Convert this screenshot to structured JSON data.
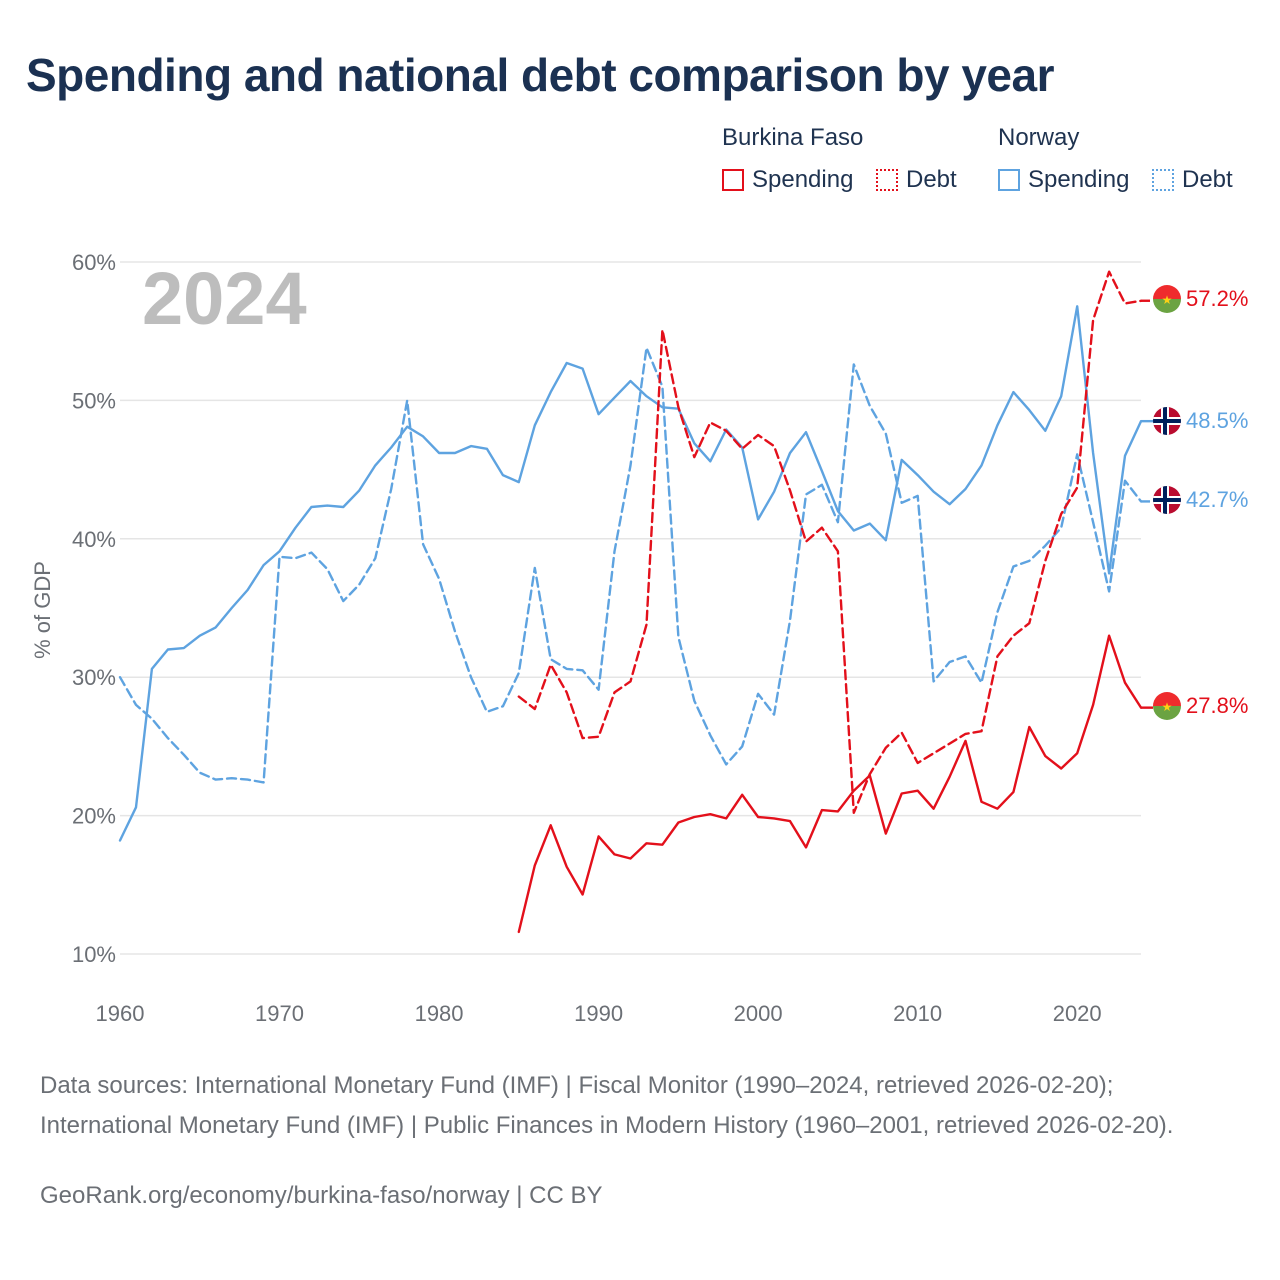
{
  "title": "Spending and national debt comparison by year",
  "legend": {
    "groups": [
      {
        "country": "Burkina Faso",
        "color": "#e3101b",
        "items": [
          {
            "label": "Spending",
            "style": "solid"
          },
          {
            "label": "Debt",
            "style": "dotted"
          }
        ]
      },
      {
        "country": "Norway",
        "color": "#5ea3e0",
        "items": [
          {
            "label": "Spending",
            "style": "solid"
          },
          {
            "label": "Debt",
            "style": "dotted"
          }
        ]
      }
    ]
  },
  "year_label": "2024",
  "end_labels": {
    "bf_debt": "57.2%",
    "no_spending": "48.5%",
    "no_debt": "42.7%",
    "bf_spending": "27.8%"
  },
  "sources_text": "Data sources: International Monetary Fund (IMF) | Fiscal Monitor (1990–2024, retrieved 2026-02-20); International Monetary Fund (IMF) | Public Finances in Modern History (1960–2001, retrieved 2026-02-20).",
  "credit_text": "GeoRank.org/economy/burkina-faso/norway | CC BY",
  "colors": {
    "burkina": "#e3101b",
    "norway": "#5ea3e0",
    "grid": "#e5e5e5",
    "year": "#bdbdbd"
  },
  "chart_data": {
    "type": "line",
    "title": "Spending and national debt comparison by year",
    "xlabel": "",
    "ylabel": "% of GDP",
    "xlim": [
      1960,
      2024
    ],
    "ylim": [
      10,
      60
    ],
    "x_ticks": [
      1960,
      1970,
      1980,
      1990,
      2000,
      2010,
      2020
    ],
    "x_tick_labels": [
      "1960",
      "1970",
      "1980",
      "1990",
      "2000",
      "2010",
      "2020"
    ],
    "y_ticks": [
      10,
      20,
      30,
      40,
      50,
      60
    ],
    "y_tick_labels": [
      "10%",
      "20%",
      "30%",
      "40%",
      "50%",
      "60%"
    ],
    "grid": true,
    "series": [
      {
        "name": "Norway Spending",
        "country": "Norway",
        "metric": "Spending",
        "style": "solid",
        "color": "#5ea3e0",
        "x": [
          1960,
          1961,
          1962,
          1963,
          1964,
          1965,
          1966,
          1967,
          1968,
          1969,
          1970,
          1971,
          1972,
          1973,
          1974,
          1975,
          1976,
          1977,
          1978,
          1979,
          1980,
          1981,
          1982,
          1983,
          1984,
          1985,
          1986,
          1987,
          1988,
          1989,
          1990,
          1991,
          1992,
          1993,
          1994,
          1995,
          1996,
          1997,
          1998,
          1999,
          2000,
          2001,
          2002,
          2003,
          2004,
          2005,
          2006,
          2007,
          2008,
          2009,
          2010,
          2011,
          2012,
          2013,
          2014,
          2015,
          2016,
          2017,
          2018,
          2019,
          2020,
          2021,
          2022,
          2023,
          2024
        ],
        "values": [
          18.2,
          20.6,
          30.6,
          32.0,
          32.1,
          33.0,
          33.6,
          35.0,
          36.3,
          38.1,
          39.1,
          40.8,
          42.3,
          42.4,
          42.3,
          43.5,
          45.3,
          46.6,
          48.1,
          47.4,
          46.2,
          46.2,
          46.7,
          46.5,
          44.6,
          44.1,
          48.2,
          50.6,
          52.7,
          52.3,
          49.0,
          50.2,
          51.4,
          50.3,
          49.5,
          49.4,
          46.9,
          45.6,
          47.9,
          46.6,
          41.4,
          43.4,
          46.2,
          47.7,
          44.9,
          42.0,
          40.6,
          41.1,
          39.9,
          45.7,
          44.6,
          43.4,
          42.5,
          43.6,
          45.3,
          48.2,
          50.6,
          49.3,
          47.8,
          50.3,
          56.8,
          46.2,
          37.5,
          46.0,
          48.5
        ]
      },
      {
        "name": "Norway Debt",
        "country": "Norway",
        "metric": "Debt",
        "style": "dotted",
        "color": "#5ea3e0",
        "x": [
          1960,
          1961,
          1962,
          1963,
          1964,
          1965,
          1966,
          1967,
          1968,
          1969,
          1970,
          1971,
          1972,
          1973,
          1974,
          1975,
          1976,
          1977,
          1978,
          1979,
          1980,
          1981,
          1982,
          1983,
          1984,
          1985,
          1986,
          1987,
          1988,
          1989,
          1990,
          1991,
          1992,
          1993,
          1994,
          1995,
          1996,
          1997,
          1998,
          1999,
          2000,
          2001,
          2002,
          2003,
          2004,
          2005,
          2006,
          2007,
          2008,
          2009,
          2010,
          2011,
          2012,
          2013,
          2014,
          2015,
          2016,
          2017,
          2018,
          2019,
          2020,
          2021,
          2022,
          2023,
          2024
        ],
        "values": [
          30.0,
          28.0,
          27.0,
          25.6,
          24.4,
          23.1,
          22.6,
          22.7,
          22.6,
          22.4,
          38.7,
          38.6,
          39.0,
          37.8,
          35.5,
          36.7,
          38.6,
          43.6,
          50.0,
          39.6,
          37.1,
          33.3,
          30.0,
          27.5,
          27.9,
          30.3,
          37.9,
          31.3,
          30.6,
          30.5,
          29.1,
          39.1,
          45.3,
          53.8,
          51.0,
          32.9,
          28.3,
          25.8,
          23.7,
          25.0,
          28.8,
          27.3,
          34.1,
          43.2,
          43.9,
          41.2,
          52.6,
          49.6,
          47.6,
          42.6,
          43.1,
          29.7,
          31.1,
          31.5,
          29.6,
          34.7,
          38.0,
          38.4,
          39.5,
          40.8,
          46.1,
          41.2,
          36.2,
          44.2,
          42.7
        ]
      },
      {
        "name": "Burkina Faso Spending",
        "country": "Burkina Faso",
        "metric": "Spending",
        "style": "solid",
        "color": "#e3101b",
        "x": [
          1985,
          1986,
          1987,
          1988,
          1989,
          1990,
          1991,
          1992,
          1993,
          1994,
          1995,
          1996,
          1997,
          1998,
          1999,
          2000,
          2001,
          2002,
          2003,
          2004,
          2005,
          2006,
          2007,
          2008,
          2009,
          2010,
          2011,
          2012,
          2013,
          2014,
          2015,
          2016,
          2017,
          2018,
          2019,
          2020,
          2021,
          2022,
          2023,
          2024
        ],
        "values": [
          11.6,
          16.4,
          19.3,
          16.3,
          14.3,
          18.5,
          17.2,
          16.9,
          18.0,
          17.9,
          19.5,
          19.9,
          20.1,
          19.8,
          21.5,
          19.9,
          19.8,
          19.6,
          17.7,
          20.4,
          20.3,
          21.8,
          22.9,
          18.7,
          21.6,
          21.8,
          20.5,
          22.8,
          25.4,
          21.0,
          20.5,
          21.7,
          26.4,
          24.3,
          23.4,
          24.5,
          28.0,
          33.0,
          29.6,
          27.8
        ]
      },
      {
        "name": "Burkina Faso Debt",
        "country": "Burkina Faso",
        "metric": "Debt",
        "style": "dotted",
        "color": "#e3101b",
        "x": [
          1985,
          1986,
          1987,
          1988,
          1989,
          1990,
          1991,
          1992,
          1993,
          1994,
          1995,
          1996,
          1997,
          1998,
          1999,
          2000,
          2001,
          2002,
          2003,
          2004,
          2005,
          2006,
          2007,
          2008,
          2009,
          2010,
          2011,
          2012,
          2013,
          2014,
          2015,
          2016,
          2017,
          2018,
          2019,
          2020,
          2021,
          2022,
          2023,
          2024
        ],
        "values": [
          28.6,
          27.7,
          30.9,
          28.9,
          25.6,
          25.7,
          28.9,
          29.7,
          33.8,
          55.1,
          49.5,
          45.9,
          48.4,
          47.8,
          46.5,
          47.5,
          46.7,
          43.5,
          39.8,
          40.8,
          39.1,
          20.2,
          23.0,
          24.9,
          26.0,
          23.8,
          24.5,
          25.2,
          25.9,
          26.1,
          31.5,
          33.0,
          33.9,
          38.4,
          41.8,
          43.7,
          55.8,
          59.3,
          57.0,
          57.2
        ]
      }
    ]
  }
}
